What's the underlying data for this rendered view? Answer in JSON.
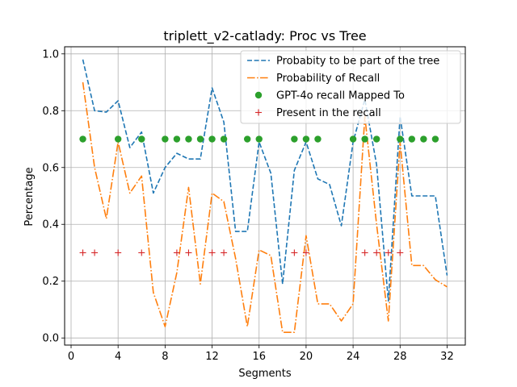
{
  "chart_data": {
    "type": "line",
    "title": "triplett_v2-catlady: Proc vs Tree",
    "xlabel": "Segments",
    "ylabel": "Percentage",
    "xlim": [
      -0.55,
      33.55
    ],
    "ylim": [
      -0.025,
      1.025
    ],
    "xticks": [
      0,
      4,
      8,
      12,
      16,
      20,
      24,
      28,
      32
    ],
    "yticks": [
      0.0,
      0.2,
      0.4,
      0.6,
      0.8,
      1.0
    ],
    "xtick_labels": [
      "0",
      "4",
      "8",
      "12",
      "16",
      "20",
      "24",
      "28",
      "32"
    ],
    "ytick_labels": [
      "0.0",
      "0.2",
      "0.4",
      "0.6",
      "0.8",
      "1.0"
    ],
    "grid": true,
    "legend_position": "top-right",
    "series": [
      {
        "name": "Probabity to be part of the tree",
        "style": "dashed",
        "color": "#1f77b4",
        "x": [
          1,
          2,
          3,
          4,
          5,
          6,
          7,
          8,
          9,
          10,
          11,
          12,
          13,
          14,
          15,
          16,
          17,
          18,
          19,
          20,
          21,
          22,
          23,
          24,
          25,
          26,
          27,
          28,
          29,
          30,
          31,
          32
        ],
        "y": [
          0.98,
          0.8,
          0.795,
          0.835,
          0.67,
          0.725,
          0.51,
          0.6,
          0.65,
          0.63,
          0.63,
          0.88,
          0.76,
          0.375,
          0.375,
          0.69,
          0.58,
          0.19,
          0.59,
          0.69,
          0.56,
          0.54,
          0.395,
          0.69,
          0.84,
          0.61,
          0.13,
          0.78,
          0.5,
          0.5,
          0.5,
          0.22
        ]
      },
      {
        "name": "Probability of Recall",
        "style": "dashdot",
        "color": "#ff7f0e",
        "x": [
          1,
          2,
          3,
          4,
          5,
          6,
          7,
          8,
          9,
          10,
          11,
          12,
          13,
          14,
          15,
          16,
          17,
          18,
          19,
          20,
          21,
          22,
          23,
          24,
          25,
          26,
          27,
          28,
          29,
          30,
          31,
          32
        ],
        "y": [
          0.9,
          0.6,
          0.42,
          0.69,
          0.51,
          0.57,
          0.16,
          0.04,
          0.23,
          0.53,
          0.19,
          0.51,
          0.48,
          0.28,
          0.04,
          0.31,
          0.29,
          0.02,
          0.02,
          0.36,
          0.12,
          0.12,
          0.06,
          0.12,
          0.78,
          0.4,
          0.06,
          0.69,
          0.255,
          0.255,
          0.205,
          0.18
        ]
      },
      {
        "name": "GPT-4o recall Mapped To",
        "style": "marker-circle",
        "color": "#2ca02c",
        "x": [
          1,
          4,
          6,
          8,
          9,
          10,
          11,
          12,
          13,
          15,
          16,
          19,
          20,
          21,
          24,
          25,
          26,
          28,
          29,
          30,
          31
        ],
        "y": [
          0.7,
          0.7,
          0.7,
          0.7,
          0.7,
          0.7,
          0.7,
          0.7,
          0.7,
          0.7,
          0.7,
          0.7,
          0.7,
          0.7,
          0.7,
          0.7,
          0.7,
          0.7,
          0.7,
          0.7,
          0.7
        ]
      },
      {
        "name": "Present in the recall",
        "style": "marker-plus",
        "color": "#d62728",
        "x": [
          1,
          2,
          4,
          6,
          9,
          10,
          12,
          13,
          19,
          20,
          25,
          26,
          27,
          28
        ],
        "y": [
          0.3,
          0.3,
          0.3,
          0.3,
          0.3,
          0.3,
          0.3,
          0.3,
          0.3,
          0.3,
          0.3,
          0.3,
          0.3,
          0.3
        ]
      }
    ]
  }
}
